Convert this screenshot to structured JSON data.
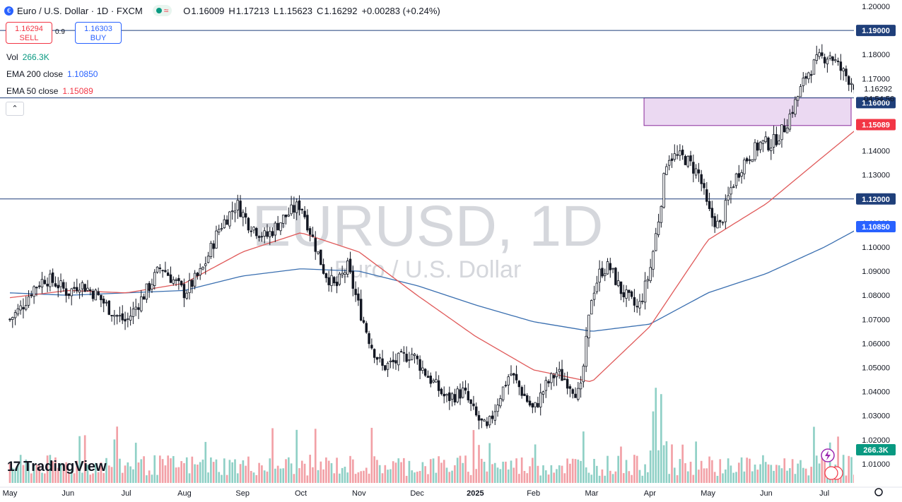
{
  "header": {
    "title": "Euro / U.S. Dollar · 1D · FXCM",
    "ohlc": [
      {
        "k": "O",
        "v": "1.16009"
      },
      {
        "k": "H",
        "v": "1.17213"
      },
      {
        "k": "L",
        "v": "1.15623"
      },
      {
        "k": "C",
        "v": "1.16292"
      }
    ],
    "change": "+0.00283 (+0.24%)"
  },
  "trade": {
    "sell_price": "1.16294",
    "sell_label": "SELL",
    "spread": "0.9",
    "buy_price": "1.16303",
    "buy_label": "BUY"
  },
  "indicators": {
    "vol_label": "Vol",
    "vol_value": "266.3K",
    "ema200_label": "EMA 200 close",
    "ema200_value": "1.10850",
    "ema50_label": "EMA 50 close",
    "ema50_value": "1.15089"
  },
  "brand": {
    "logo_mark": "17",
    "name": "TradingView"
  },
  "colors": {
    "up": "#131722",
    "down": "#131722",
    "ema50": "#e05a5a",
    "ema200": "#3a6fb0",
    "zone_fill": "#e8d2f0",
    "zone_stroke": "#8a2a9c",
    "hline": "#1f3f7a",
    "vol_up": "#8fd0c6",
    "vol_down": "#f2a0a6",
    "watermark": "#d5d7dc"
  },
  "chart_data": {
    "type": "candlestick",
    "symbol": "EURUSD",
    "timeframe": "1D",
    "watermark": "EURUSD, 1D",
    "watermark_sub": "Euro / U.S. Dollar",
    "ylim": [
      1.0,
      1.2
    ],
    "y_ticks": [
      "1.20000",
      "1.19000",
      "1.18000",
      "1.17000",
      "1.16000",
      "1.15000",
      "1.14000",
      "1.13000",
      "1.12000",
      "1.11000",
      "1.10000",
      "1.09000",
      "1.08000",
      "1.07000",
      "1.06000",
      "1.05000",
      "1.04000",
      "1.03000",
      "1.02000",
      "1.01000"
    ],
    "x_ticks": [
      "May",
      "Jun",
      "Jul",
      "Aug",
      "Sep",
      "Oct",
      "Nov",
      "Dec",
      "2025",
      "Feb",
      "Mar",
      "Apr",
      "May",
      "Jun",
      "Jul"
    ],
    "horizontal_lines": [
      1.19,
      1.162,
      1.12
    ],
    "zone": {
      "low": 1.1505,
      "high": 1.162,
      "start_label": "Mar",
      "start_frac": 0.9
    },
    "price_labels": [
      {
        "text": "1.19000",
        "value": 1.19,
        "style": "line"
      },
      {
        "text": "1.12000",
        "value": 1.12,
        "style": "line"
      },
      {
        "text": "1.10850",
        "value": 1.1085,
        "style": "ema200"
      },
      {
        "text": "1.16000",
        "value": 1.16,
        "style": "line"
      },
      {
        "text": "1.15089",
        "value": 1.15089,
        "style": "ema50"
      }
    ],
    "last_price": {
      "text": "1.16292",
      "countdown": "04:54:56",
      "value": 1.16292
    },
    "volume_last": "266.3K",
    "series": [
      {
        "name": "Price",
        "anchors_month": [
          0,
          0.2,
          0.4,
          0.6,
          0.8,
          1,
          1.2,
          1.5,
          1.8,
          2,
          2.3,
          2.6,
          3,
          3.3,
          3.6,
          3.9,
          4.1,
          4.4,
          4.7,
          5,
          5.2,
          5.4,
          5.6,
          5.8,
          6,
          6.2,
          6.4,
          6.6,
          6.9,
          7.2,
          7.5,
          7.8,
          8,
          8.2,
          8.4,
          8.6,
          8.8,
          9,
          9.2,
          9.4,
          9.6,
          9.8,
          10,
          10.15,
          10.3,
          10.5,
          10.8,
          11,
          11.15,
          11.3,
          11.6,
          11.85,
          12,
          12.2,
          12.4,
          12.6,
          12.9,
          13.1,
          13.3,
          13.5,
          13.7,
          13.9,
          14.1,
          14.3,
          14.5,
          14.65
        ],
        "anchors_close": [
          1.07,
          1.075,
          1.083,
          1.087,
          1.085,
          1.081,
          1.085,
          1.08,
          1.072,
          1.069,
          1.08,
          1.092,
          1.081,
          1.09,
          1.108,
          1.118,
          1.11,
          1.104,
          1.112,
          1.118,
          1.104,
          1.09,
          1.083,
          1.092,
          1.075,
          1.06,
          1.05,
          1.052,
          1.056,
          1.046,
          1.037,
          1.04,
          1.03,
          1.024,
          1.037,
          1.048,
          1.04,
          1.032,
          1.042,
          1.048,
          1.044,
          1.038,
          1.08,
          1.09,
          1.092,
          1.082,
          1.074,
          1.09,
          1.112,
          1.138,
          1.137,
          1.13,
          1.115,
          1.108,
          1.125,
          1.135,
          1.143,
          1.143,
          1.149,
          1.16,
          1.172,
          1.178,
          1.18,
          1.173,
          1.168,
          1.16292
        ]
      },
      {
        "name": "EMA 50 close",
        "anchors_month": [
          0,
          1,
          2,
          3,
          4,
          5,
          6,
          7,
          8,
          9,
          10,
          11,
          12,
          13,
          14,
          14.65
        ],
        "anchors_value": [
          1.079,
          1.082,
          1.081,
          1.085,
          1.098,
          1.106,
          1.098,
          1.08,
          1.063,
          1.049,
          1.044,
          1.067,
          1.103,
          1.118,
          1.138,
          1.15089
        ]
      },
      {
        "name": "EMA 200 close",
        "anchors_month": [
          0,
          1,
          2,
          3,
          4,
          5,
          6,
          7,
          8,
          9,
          10,
          11,
          12,
          13,
          14,
          14.65
        ],
        "anchors_value": [
          1.081,
          1.08,
          1.081,
          1.082,
          1.088,
          1.091,
          1.09,
          1.084,
          1.076,
          1.069,
          1.065,
          1.068,
          1.081,
          1.089,
          1.1,
          1.1085
        ]
      }
    ]
  }
}
